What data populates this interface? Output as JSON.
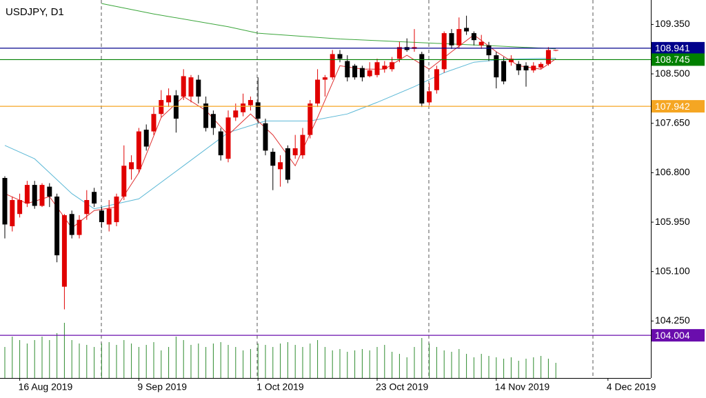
{
  "chart_data": {
    "type": "candlestick",
    "title": "USDJPY, D1",
    "categories": [
      null,
      null,
      "16 Aug 2019",
      null,
      null,
      null,
      null,
      null,
      null,
      null,
      null,
      null,
      null,
      null,
      null,
      null,
      null,
      null,
      "9 Sep 2019",
      null,
      null,
      null,
      null,
      null,
      null,
      null,
      null,
      null,
      null,
      null,
      null,
      null,
      null,
      null,
      "1 Oct 2019",
      null,
      null,
      null,
      null,
      null,
      null,
      null,
      null,
      null,
      null,
      null,
      null,
      null,
      null,
      null,
      "23 Oct 2019",
      null,
      null,
      null,
      null,
      null,
      null,
      null,
      null,
      null,
      null,
      null,
      null,
      null,
      null,
      null,
      "14 Nov 2019",
      null,
      null,
      null,
      null,
      null,
      null,
      null,
      null,
      null,
      null,
      null,
      null,
      null,
      null,
      "4 Dec 2019",
      null,
      null,
      null,
      null,
      null
    ],
    "open": [
      106.71,
      105.88,
      106.09,
      106.27,
      106.59,
      106.23,
      106.56,
      106.39,
      104.84,
      106.09,
      105.73,
      106.09,
      106.47,
      106.15,
      105.91,
      105.95,
      106.39,
      106.86,
      106.86,
      107.54,
      107.51,
      107.81,
      108.01,
      108.13,
      108.11,
      108.11,
      108.4,
      107.99,
      107.81,
      107.51,
      107.04,
      107.75,
      107.84,
      107.96,
      108.01,
      107.65,
      107.16,
      106.86,
      107.22,
      107.1,
      107.1,
      107.45,
      107.99,
      108.4,
      108.44,
      108.84,
      108.72,
      108.64,
      108.6,
      108.46,
      108.48,
      108.58,
      108.58,
      108.76,
      108.96,
      108.93,
      108.84,
      108.01,
      108.22,
      108.58,
      109.2,
      108.99,
      109.29,
      109.2,
      108.99,
      108.99,
      108.82,
      108.72,
      108.7,
      108.67,
      108.64,
      108.56,
      108.61,
      108.67,
      108.91,
      null,
      null,
      null,
      null,
      null,
      null,
      null,
      null,
      null,
      null,
      null,
      null
    ],
    "high": [
      106.74,
      106.39,
      106.44,
      106.66,
      106.66,
      106.62,
      106.62,
      106.44,
      106.09,
      106.15,
      106.07,
      106.5,
      106.54,
      106.21,
      106.33,
      106.44,
      107.27,
      107.1,
      107.57,
      107.63,
      107.93,
      108.22,
      108.25,
      108.22,
      108.58,
      108.48,
      108.48,
      108.11,
      107.87,
      107.57,
      107.87,
      107.99,
      108.16,
      108.11,
      108.44,
      107.73,
      107.22,
      107.1,
      107.27,
      107.45,
      107.57,
      108.05,
      108.58,
      108.48,
      108.91,
      108.91,
      108.82,
      108.67,
      108.64,
      108.7,
      108.76,
      108.72,
      108.79,
      109.05,
      109.11,
      109.27,
      108.88,
      108.34,
      108.64,
      109.23,
      109.27,
      109.47,
      109.5,
      109.23,
      109.17,
      109.05,
      108.88,
      108.79,
      108.82,
      108.72,
      108.7,
      108.7,
      108.7,
      108.96,
      108.91,
      null,
      null,
      null,
      null,
      null,
      null,
      null,
      null,
      null,
      null,
      null,
      null
    ],
    "low": [
      105.67,
      105.79,
      106.03,
      106.21,
      106.18,
      106.21,
      106.21,
      105.26,
      104.45,
      105.67,
      105.67,
      105.99,
      106.21,
      105.85,
      105.79,
      105.88,
      106.33,
      106.68,
      106.8,
      107.18,
      107.45,
      107.75,
      107.93,
      107.49,
      108.05,
      108.01,
      107.99,
      107.51,
      107.45,
      107.01,
      106.98,
      107.69,
      107.77,
      107.87,
      107.65,
      107.1,
      106.5,
      106.56,
      106.62,
      107.04,
      107.04,
      107.39,
      107.93,
      108.11,
      108.4,
      108.7,
      108.37,
      108.4,
      108.37,
      108.44,
      108.44,
      108.52,
      108.54,
      108.7,
      108.88,
      108.88,
      107.93,
      107.96,
      108.16,
      108.52,
      108.93,
      108.93,
      109.17,
      108.99,
      108.93,
      108.72,
      108.25,
      108.32,
      108.64,
      108.48,
      108.28,
      108.52,
      108.58,
      108.64,
      108.89,
      null,
      null,
      null,
      null,
      null,
      null,
      null,
      null,
      null,
      null,
      null,
      null
    ],
    "close": [
      105.91,
      106.33,
      106.33,
      106.59,
      106.23,
      106.59,
      106.39,
      105.38,
      106.07,
      105.73,
      105.99,
      106.33,
      106.27,
      105.95,
      106.18,
      106.39,
      106.92,
      106.98,
      107.51,
      107.25,
      107.81,
      108.05,
      108.13,
      107.73,
      108.46,
      108.44,
      108.11,
      107.57,
      107.57,
      107.1,
      107.75,
      107.87,
      107.99,
      108.05,
      107.73,
      107.18,
      106.92,
      106.98,
      106.68,
      107.22,
      107.45,
      107.99,
      108.4,
      108.44,
      108.84,
      108.76,
      108.44,
      108.44,
      108.44,
      108.56,
      108.7,
      108.64,
      108.7,
      108.96,
      108.91,
      108.96,
      107.99,
      108.2,
      108.58,
      109.2,
      108.99,
      109.27,
      109.23,
      109.08,
      109.05,
      108.82,
      108.44,
      108.37,
      108.76,
      108.56,
      108.56,
      108.64,
      108.67,
      108.91,
      108.91,
      null,
      null,
      null,
      null,
      null,
      null,
      null,
      null,
      null,
      null,
      null,
      null
    ],
    "volume": [
      45,
      60,
      55,
      50,
      55,
      60,
      55,
      65,
      80,
      55,
      50,
      48,
      45,
      50,
      52,
      48,
      55,
      50,
      45,
      48,
      52,
      40,
      45,
      60,
      55,
      48,
      50,
      45,
      50,
      52,
      48,
      45,
      40,
      42,
      50,
      48,
      45,
      50,
      52,
      48,
      45,
      50,
      55,
      45,
      40,
      42,
      38,
      40,
      42,
      40,
      45,
      48,
      38,
      35,
      30,
      45,
      58,
      50,
      45,
      40,
      38,
      42,
      35,
      30,
      35,
      32,
      30,
      28,
      30,
      25,
      28,
      30,
      32,
      28,
      22,
      null,
      null,
      null,
      null,
      null,
      null,
      null,
      null,
      null,
      null,
      null,
      null
    ],
    "up_color": "#e00000",
    "down_color": "#000000",
    "volume_color": "#2e8b2e",
    "overlays": [
      {
        "color": "#3aa53a",
        "x": [
          13,
          20,
          30,
          34,
          45,
          57,
          66,
          74
        ],
        "values": [
          109.71,
          109.53,
          109.31,
          109.2,
          109.1,
          109.03,
          108.98,
          108.93
        ]
      },
      {
        "color": "#5bb8d6",
        "x": [
          0,
          4,
          9,
          12,
          18,
          24,
          30,
          35,
          41,
          46,
          50,
          55,
          59,
          63,
          67,
          74
        ],
        "values": [
          107.27,
          107.04,
          106.44,
          106.18,
          106.35,
          106.92,
          107.49,
          107.69,
          107.69,
          107.81,
          108.01,
          108.28,
          108.52,
          108.7,
          108.75,
          108.77
        ]
      },
      {
        "color": "#e03030",
        "x": [
          0,
          3,
          6,
          9,
          12,
          15,
          18,
          21,
          24,
          27,
          30,
          33,
          36,
          39,
          42,
          45,
          48,
          51,
          54,
          57,
          60,
          63,
          66,
          69,
          72,
          74
        ],
        "values": [
          106.44,
          106.27,
          106.39,
          105.85,
          106.15,
          106.21,
          106.8,
          107.75,
          108.11,
          107.87,
          107.45,
          107.81,
          107.45,
          106.92,
          107.75,
          108.64,
          108.58,
          108.58,
          108.82,
          108.58,
          108.88,
          109.17,
          108.88,
          108.64,
          108.58,
          108.76
        ]
      }
    ],
    "levels": [
      {
        "value": 108.941,
        "color": "#00008b"
      },
      {
        "value": 108.745,
        "color": "#008000"
      },
      {
        "value": 107.942,
        "color": "#f5a623"
      },
      {
        "value": 104.004,
        "color": "#6a0dad"
      }
    ],
    "ylim": [
      103.27,
      109.77
    ],
    "yticks": [
      {
        "value": 109.35,
        "label": "109.350"
      },
      {
        "value": 108.5,
        "label": "108.500"
      },
      {
        "value": 107.65,
        "label": "107.650"
      },
      {
        "value": 106.8,
        "label": "106.800"
      },
      {
        "value": 105.95,
        "label": "105.950"
      },
      {
        "value": 105.1,
        "label": "105.100"
      },
      {
        "value": 104.25,
        "label": "104.250"
      }
    ]
  }
}
